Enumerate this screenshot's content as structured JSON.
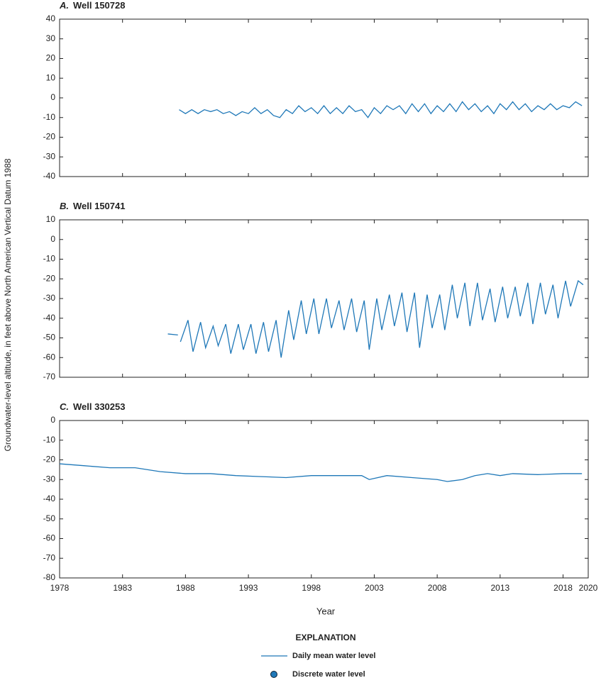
{
  "y_label": "Groundwater-level altitude, in feet above North American Vertical Datum 1988",
  "x_label": "Year",
  "legend": {
    "title": "EXPLANATION",
    "items": [
      {
        "label": "Daily mean water level",
        "marker": "line",
        "color": "#1f78b8"
      },
      {
        "label": "Discrete water level",
        "marker": "circle",
        "color": "#1f78b8"
      }
    ]
  },
  "chart_data": [
    {
      "type": "line",
      "panel": "A.",
      "title": "Well 150728",
      "xlim": [
        1978,
        2020
      ],
      "xticks": [
        1978,
        1983,
        1988,
        1993,
        1998,
        2003,
        2008,
        2013,
        2018,
        2020
      ],
      "ylim": [
        -40,
        40
      ],
      "yticks": [
        40,
        30,
        20,
        10,
        0,
        -10,
        -20,
        -30,
        -40
      ],
      "series": [
        {
          "color": "#1f78b8",
          "x": [
            1987.5,
            1988,
            1988.5,
            1989,
            1989.5,
            1990,
            1990.5,
            1991,
            1991.5,
            1992,
            1992.5,
            1993,
            1993.5,
            1994,
            1994.5,
            1995,
            1995.5,
            1996,
            1996.5,
            1997,
            1997.5,
            1998,
            1998.5,
            1999,
            1999.5,
            2000,
            2000.5,
            2001,
            2001.5,
            2002,
            2002.5,
            2003,
            2003.5,
            2004,
            2004.5,
            2005,
            2005.5,
            2006,
            2006.5,
            2007,
            2007.5,
            2008,
            2008.5,
            2009,
            2009.5,
            2010,
            2010.5,
            2011,
            2011.5,
            2012,
            2012.5,
            2013,
            2013.5,
            2014,
            2014.5,
            2015,
            2015.5,
            2016,
            2016.5,
            2017,
            2017.5,
            2018,
            2018.5,
            2019,
            2019.5
          ],
          "values": [
            -6,
            -8,
            -6,
            -8,
            -6,
            -7,
            -6,
            -8,
            -7,
            -9,
            -7,
            -8,
            -5,
            -8,
            -6,
            -9,
            -10,
            -6,
            -8,
            -4,
            -7,
            -5,
            -8,
            -4,
            -8,
            -5,
            -8,
            -4,
            -7,
            -6,
            -10,
            -5,
            -8,
            -4,
            -6,
            -4,
            -8,
            -3,
            -7,
            -3,
            -8,
            -4,
            -7,
            -3,
            -7,
            -2,
            -6,
            -3,
            -7,
            -4,
            -8,
            -3,
            -6,
            -2,
            -6,
            -3,
            -7,
            -4,
            -6,
            -3,
            -6,
            -4,
            -5,
            -2,
            -4
          ]
        }
      ]
    },
    {
      "type": "line",
      "panel": "B.",
      "title": "Well 150741",
      "xlim": [
        1978,
        2020
      ],
      "xticks": [
        1978,
        1983,
        1988,
        1993,
        1998,
        2003,
        2008,
        2013,
        2018,
        2020
      ],
      "ylim": [
        -70,
        10
      ],
      "yticks": [
        10,
        0,
        -10,
        -20,
        -30,
        -40,
        -50,
        -60,
        -70
      ],
      "series": [
        {
          "color": "#1f78b8",
          "x": [
            1986.6,
            1987.4,
            1987.5,
            1987.6,
            1988.2,
            1988.6,
            1989.2,
            1989.6,
            1990.2,
            1990.6,
            1991.2,
            1991.6,
            1992.2,
            1992.6,
            1993.2,
            1993.6,
            1994.2,
            1994.6,
            1995.2,
            1995.6,
            1996.2,
            1996.6,
            1997.2,
            1997.6,
            1998.2,
            1998.6,
            1999.2,
            1999.6,
            2000.2,
            2000.6,
            2001.2,
            2001.6,
            2002.2,
            2002.6,
            2003.2,
            2003.6,
            2004.2,
            2004.6,
            2005.2,
            2005.6,
            2006.2,
            2006.6,
            2007.2,
            2007.6,
            2008.2,
            2008.6,
            2009.2,
            2009.6,
            2010.2,
            2010.6,
            2011.2,
            2011.6,
            2012.2,
            2012.6,
            2013.2,
            2013.6,
            2014.2,
            2014.6,
            2015.2,
            2015.6,
            2016.2,
            2016.6,
            2017.2,
            2017.6,
            2018.2,
            2018.6,
            2019.2,
            2019.6
          ],
          "values": [
            -48,
            -48.5,
            null,
            -52,
            -41,
            -57,
            -42,
            -55,
            -44,
            -54,
            -43,
            -58,
            -43,
            -56,
            -43,
            -58,
            -42,
            -57,
            -41,
            -60,
            -36,
            -51,
            -31,
            -48,
            -30,
            -48,
            -30,
            -45,
            -31,
            -46,
            -30,
            -47,
            -31,
            -56,
            -30,
            -46,
            -28,
            -44,
            -27,
            -47,
            -27,
            -55,
            -28,
            -45,
            -28,
            -46,
            -23,
            -40,
            -22,
            -44,
            -22,
            -41,
            -25,
            -42,
            -24,
            -40,
            -24,
            -39,
            -22,
            -43,
            -22,
            -38,
            -23,
            -40,
            -21,
            -34,
            -21,
            -23
          ]
        }
      ]
    },
    {
      "type": "line",
      "panel": "C.",
      "title": "Well 330253",
      "xlim": [
        1978,
        2020
      ],
      "xticks": [
        1978,
        1983,
        1988,
        1993,
        1998,
        2003,
        2008,
        2013,
        2018,
        2020
      ],
      "ylim": [
        -80,
        0
      ],
      "yticks": [
        0,
        -10,
        -20,
        -30,
        -40,
        -50,
        -60,
        -70,
        -80
      ],
      "series": [
        {
          "color": "#1f78b8",
          "x": [
            1978,
            1980,
            1982,
            1984,
            1986,
            1988,
            1990,
            1992,
            1994,
            1996,
            1998,
            2000,
            2002,
            2002.6,
            2004,
            2006,
            2008,
            2008.8,
            2010,
            2011,
            2012,
            2013,
            2014,
            2016,
            2018,
            2019.5
          ],
          "values": [
            -22,
            -23,
            -24,
            -24,
            -26,
            -27,
            -27,
            -28,
            -28.5,
            -29,
            -28,
            -28,
            -28,
            -30,
            -28,
            -29,
            -30,
            -31,
            -30,
            -28,
            -27,
            -28,
            -27,
            -27.5,
            -27,
            -27
          ]
        }
      ]
    }
  ]
}
